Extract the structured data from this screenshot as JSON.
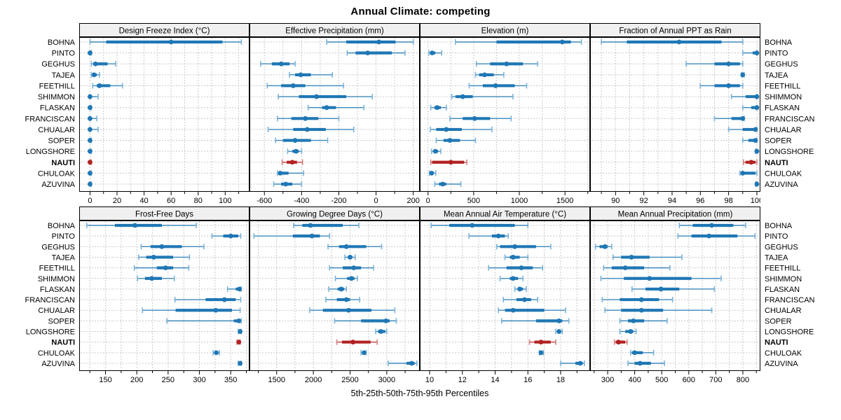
{
  "title": "Annual Climate: competing",
  "footer": "5th-25th-50th-75th-95th Percentiles",
  "highlight_location": "NAUTI",
  "colors": {
    "series": "#1f77b4",
    "series_light": "#7ab3d9",
    "highlight": "#b22222",
    "highlight_light": "#d98080",
    "grid": "#c9c9c9",
    "strip_bg": "#f0f0f0",
    "border": "#000000"
  },
  "locations": [
    "BOHNA",
    "PINTO",
    "GEGHUS",
    "TAJEA",
    "FEETHILL",
    "SHIMMON",
    "FLASKAN",
    "FRANCISCAN",
    "CHUALAR",
    "SOPER",
    "LONGSHORE",
    "NAUTI",
    "CHULOAK",
    "AZUVINA"
  ],
  "chart_data": {
    "type": "dot-percentile-intervals",
    "layout": {
      "rows": 2,
      "cols": 4,
      "grid": "dashed",
      "legend": "none"
    },
    "percentiles": [
      5,
      25,
      50,
      75,
      95
    ],
    "xlabel": "5th-25th-50th-75th-95th Percentiles",
    "panels": [
      {
        "title": "Design Freeze Index (°C)",
        "range": [
          -8,
          118
        ],
        "major_ticks": [
          0,
          20,
          40,
          60,
          80,
          100
        ],
        "minor_step": 10,
        "values": [
          [
            0,
            12,
            60,
            98,
            112
          ],
          [
            0,
            0,
            0,
            0,
            1
          ],
          [
            1,
            3,
            4,
            13,
            19
          ],
          [
            1,
            2,
            3,
            5,
            7
          ],
          [
            2,
            5,
            7,
            15,
            24
          ],
          [
            0,
            0,
            0,
            1,
            6
          ],
          [
            0,
            0,
            0,
            0,
            1
          ],
          [
            0,
            0,
            0,
            1,
            5
          ],
          [
            0,
            0,
            0,
            1,
            6
          ],
          [
            0,
            0,
            0,
            0,
            1
          ],
          [
            0,
            0,
            0,
            0,
            1
          ],
          [
            0,
            0,
            0,
            0,
            1
          ],
          [
            0,
            0,
            0,
            0,
            1
          ],
          [
            0,
            0,
            0,
            0,
            1
          ]
        ]
      },
      {
        "title": "Effective Precipitation (mm)",
        "range": [
          -680,
          235
        ],
        "major_ticks": [
          -600,
          -400,
          -200,
          0,
          200
        ],
        "minor_step": 100,
        "values": [
          [
            -265,
            -160,
            15,
            105,
            200
          ],
          [
            -155,
            -110,
            -45,
            85,
            155
          ],
          [
            -620,
            -560,
            -510,
            -465,
            -435
          ],
          [
            -465,
            -435,
            -405,
            -350,
            -235
          ],
          [
            -585,
            -510,
            -445,
            -380,
            -175
          ],
          [
            -525,
            -415,
            -320,
            -160,
            -20
          ],
          [
            -365,
            -290,
            -265,
            -215,
            -65
          ],
          [
            -530,
            -455,
            -380,
            -310,
            -200
          ],
          [
            -580,
            -445,
            -370,
            -270,
            -120
          ],
          [
            -540,
            -500,
            -435,
            -350,
            -260
          ],
          [
            -475,
            -450,
            -430,
            -415,
            -400
          ],
          [
            -505,
            -480,
            -450,
            -425,
            -395
          ],
          [
            -530,
            -522,
            -515,
            -470,
            -390
          ],
          [
            -550,
            -510,
            -485,
            -450,
            -400
          ]
        ]
      },
      {
        "title": "Elevation (m)",
        "range": [
          -90,
          1775
        ],
        "major_ticks": [
          0,
          500,
          1000,
          1500
        ],
        "minor_step": 250,
        "values": [
          [
            300,
            750,
            1470,
            1565,
            1680
          ],
          [
            10,
            25,
            45,
            80,
            150
          ],
          [
            530,
            680,
            860,
            1040,
            1200
          ],
          [
            520,
            560,
            620,
            720,
            830
          ],
          [
            450,
            600,
            740,
            950,
            1080
          ],
          [
            260,
            300,
            380,
            490,
            930
          ],
          [
            30,
            70,
            100,
            140,
            200
          ],
          [
            240,
            380,
            510,
            680,
            910
          ],
          [
            25,
            90,
            200,
            370,
            700
          ],
          [
            90,
            170,
            240,
            350,
            520
          ],
          [
            40,
            60,
            80,
            110,
            140
          ],
          [
            30,
            45,
            250,
            395,
            425
          ],
          [
            15,
            25,
            40,
            60,
            85
          ],
          [
            75,
            120,
            160,
            200,
            360
          ]
        ]
      },
      {
        "title": "Fraction of Annual PPT as Rain",
        "range": [
          88.2,
          100.25
        ],
        "major_ticks": [
          90,
          92,
          94,
          96,
          98,
          100
        ],
        "minor_step": 1,
        "values": [
          [
            89,
            90.8,
            94.5,
            97.5,
            99
          ],
          [
            99,
            99.7,
            100,
            100,
            100
          ],
          [
            95,
            97,
            98,
            98.8,
            99
          ],
          [
            98.9,
            99,
            99,
            99.05,
            99.1
          ],
          [
            96,
            97,
            98,
            98.8,
            99
          ],
          [
            98.2,
            99.2,
            100,
            100,
            100
          ],
          [
            99,
            99.6,
            100,
            100,
            100
          ],
          [
            97,
            98.2,
            99,
            99.05,
            99.1
          ],
          [
            98,
            99,
            99.9,
            100,
            100
          ],
          [
            99,
            99.4,
            99.9,
            100,
            100
          ],
          [
            99.9,
            100,
            100,
            100,
            100
          ],
          [
            99.05,
            99.2,
            99.6,
            99.9,
            100
          ],
          [
            98.8,
            98.95,
            99.0,
            99.9,
            100
          ],
          [
            99.9,
            100,
            100,
            100,
            100
          ]
        ]
      },
      {
        "title": "Frost-Free Days",
        "range": [
          108,
          380
        ],
        "major_ticks": [
          150,
          200,
          250,
          300,
          350
        ],
        "minor_step": 25,
        "values": [
          [
            120,
            165,
            197,
            240,
            295
          ],
          [
            320,
            338,
            350,
            362,
            366
          ],
          [
            207,
            222,
            240,
            272,
            307
          ],
          [
            203,
            215,
            227,
            258,
            284
          ],
          [
            196,
            232,
            246,
            258,
            283
          ],
          [
            201,
            213,
            224,
            240,
            260
          ],
          [
            345,
            358,
            364,
            366,
            367
          ],
          [
            261,
            310,
            340,
            358,
            366
          ],
          [
            209,
            262,
            326,
            352,
            365
          ],
          [
            248,
            355,
            363,
            366,
            367
          ],
          [
            362,
            364,
            365,
            366,
            367
          ],
          [
            360,
            362,
            363,
            364,
            365
          ],
          [
            322,
            325,
            327,
            330,
            332
          ],
          [
            362,
            364,
            365,
            366,
            367
          ]
        ]
      },
      {
        "title": "Growing Degree Days (°C)",
        "range": [
          1130,
          3450
        ],
        "major_ticks": [
          1500,
          2000,
          2500,
          3000
        ],
        "minor_step": 250,
        "values": [
          [
            1730,
            1850,
            1960,
            2400,
            2620
          ],
          [
            1190,
            1720,
            1980,
            2090,
            2220
          ],
          [
            2200,
            2350,
            2450,
            2720,
            2930
          ],
          [
            2430,
            2470,
            2500,
            2530,
            2570
          ],
          [
            2220,
            2400,
            2550,
            2650,
            2820
          ],
          [
            2300,
            2460,
            2520,
            2560,
            2600
          ],
          [
            2210,
            2330,
            2380,
            2420,
            2450
          ],
          [
            2170,
            2320,
            2450,
            2500,
            2630
          ],
          [
            1950,
            2130,
            2480,
            2790,
            3110
          ],
          [
            2290,
            2650,
            2990,
            3040,
            3130
          ],
          [
            2850,
            2880,
            2920,
            2980,
            3000
          ],
          [
            2320,
            2390,
            2540,
            2780,
            2870
          ],
          [
            2650,
            2670,
            2690,
            2700,
            2720
          ],
          [
            3020,
            3270,
            3340,
            3380,
            3410
          ]
        ]
      },
      {
        "title": "Mean Annual Air Temperature (°C)",
        "range": [
          9.4,
          19.8
        ],
        "major_ticks": [
          10,
          12,
          14,
          16,
          18
        ],
        "minor_step": 1,
        "values": [
          [
            10.1,
            11.2,
            12.6,
            15.2,
            16.0
          ],
          [
            12.4,
            13.8,
            14.2,
            14.6,
            14.8
          ],
          [
            14.1,
            14.3,
            15.2,
            16.5,
            17.4
          ],
          [
            14.6,
            14.9,
            15.1,
            15.5,
            16.0
          ],
          [
            13.6,
            14.7,
            15.6,
            16.3,
            16.9
          ],
          [
            14.3,
            14.9,
            15.1,
            15.4,
            15.7
          ],
          [
            15.2,
            15.4,
            15.5,
            15.7,
            15.9
          ],
          [
            14.5,
            15.3,
            15.8,
            16.2,
            16.6
          ],
          [
            14.2,
            14.6,
            15.1,
            17.0,
            18.3
          ],
          [
            14.4,
            16.5,
            17.9,
            18.1,
            18.5
          ],
          [
            17.7,
            17.8,
            17.9,
            18.0,
            18.1
          ],
          [
            16.1,
            16.4,
            16.8,
            17.4,
            17.7
          ],
          [
            16.7,
            16.75,
            16.8,
            16.9,
            16.95
          ],
          [
            18.0,
            18.9,
            19.2,
            19.35,
            19.45
          ]
        ]
      },
      {
        "title": "Mean Annual Precipitation (mm)",
        "range": [
          235,
          865
        ],
        "major_ticks": [
          300,
          400,
          500,
          600,
          700,
          800
        ],
        "minor_step": 50,
        "values": [
          [
            565,
            615,
            685,
            765,
            810
          ],
          [
            560,
            610,
            675,
            780,
            845
          ],
          [
            255,
            270,
            290,
            300,
            315
          ],
          [
            320,
            350,
            388,
            455,
            575
          ],
          [
            285,
            315,
            365,
            435,
            530
          ],
          [
            275,
            360,
            455,
            610,
            720
          ],
          [
            390,
            440,
            497,
            565,
            695
          ],
          [
            280,
            345,
            425,
            490,
            540
          ],
          [
            290,
            350,
            425,
            505,
            685
          ],
          [
            345,
            375,
            395,
            435,
            520
          ],
          [
            345,
            365,
            385,
            395,
            405
          ],
          [
            325,
            330,
            340,
            365,
            372
          ],
          [
            385,
            390,
            400,
            430,
            470
          ],
          [
            375,
            400,
            420,
            460,
            510
          ]
        ]
      }
    ]
  }
}
